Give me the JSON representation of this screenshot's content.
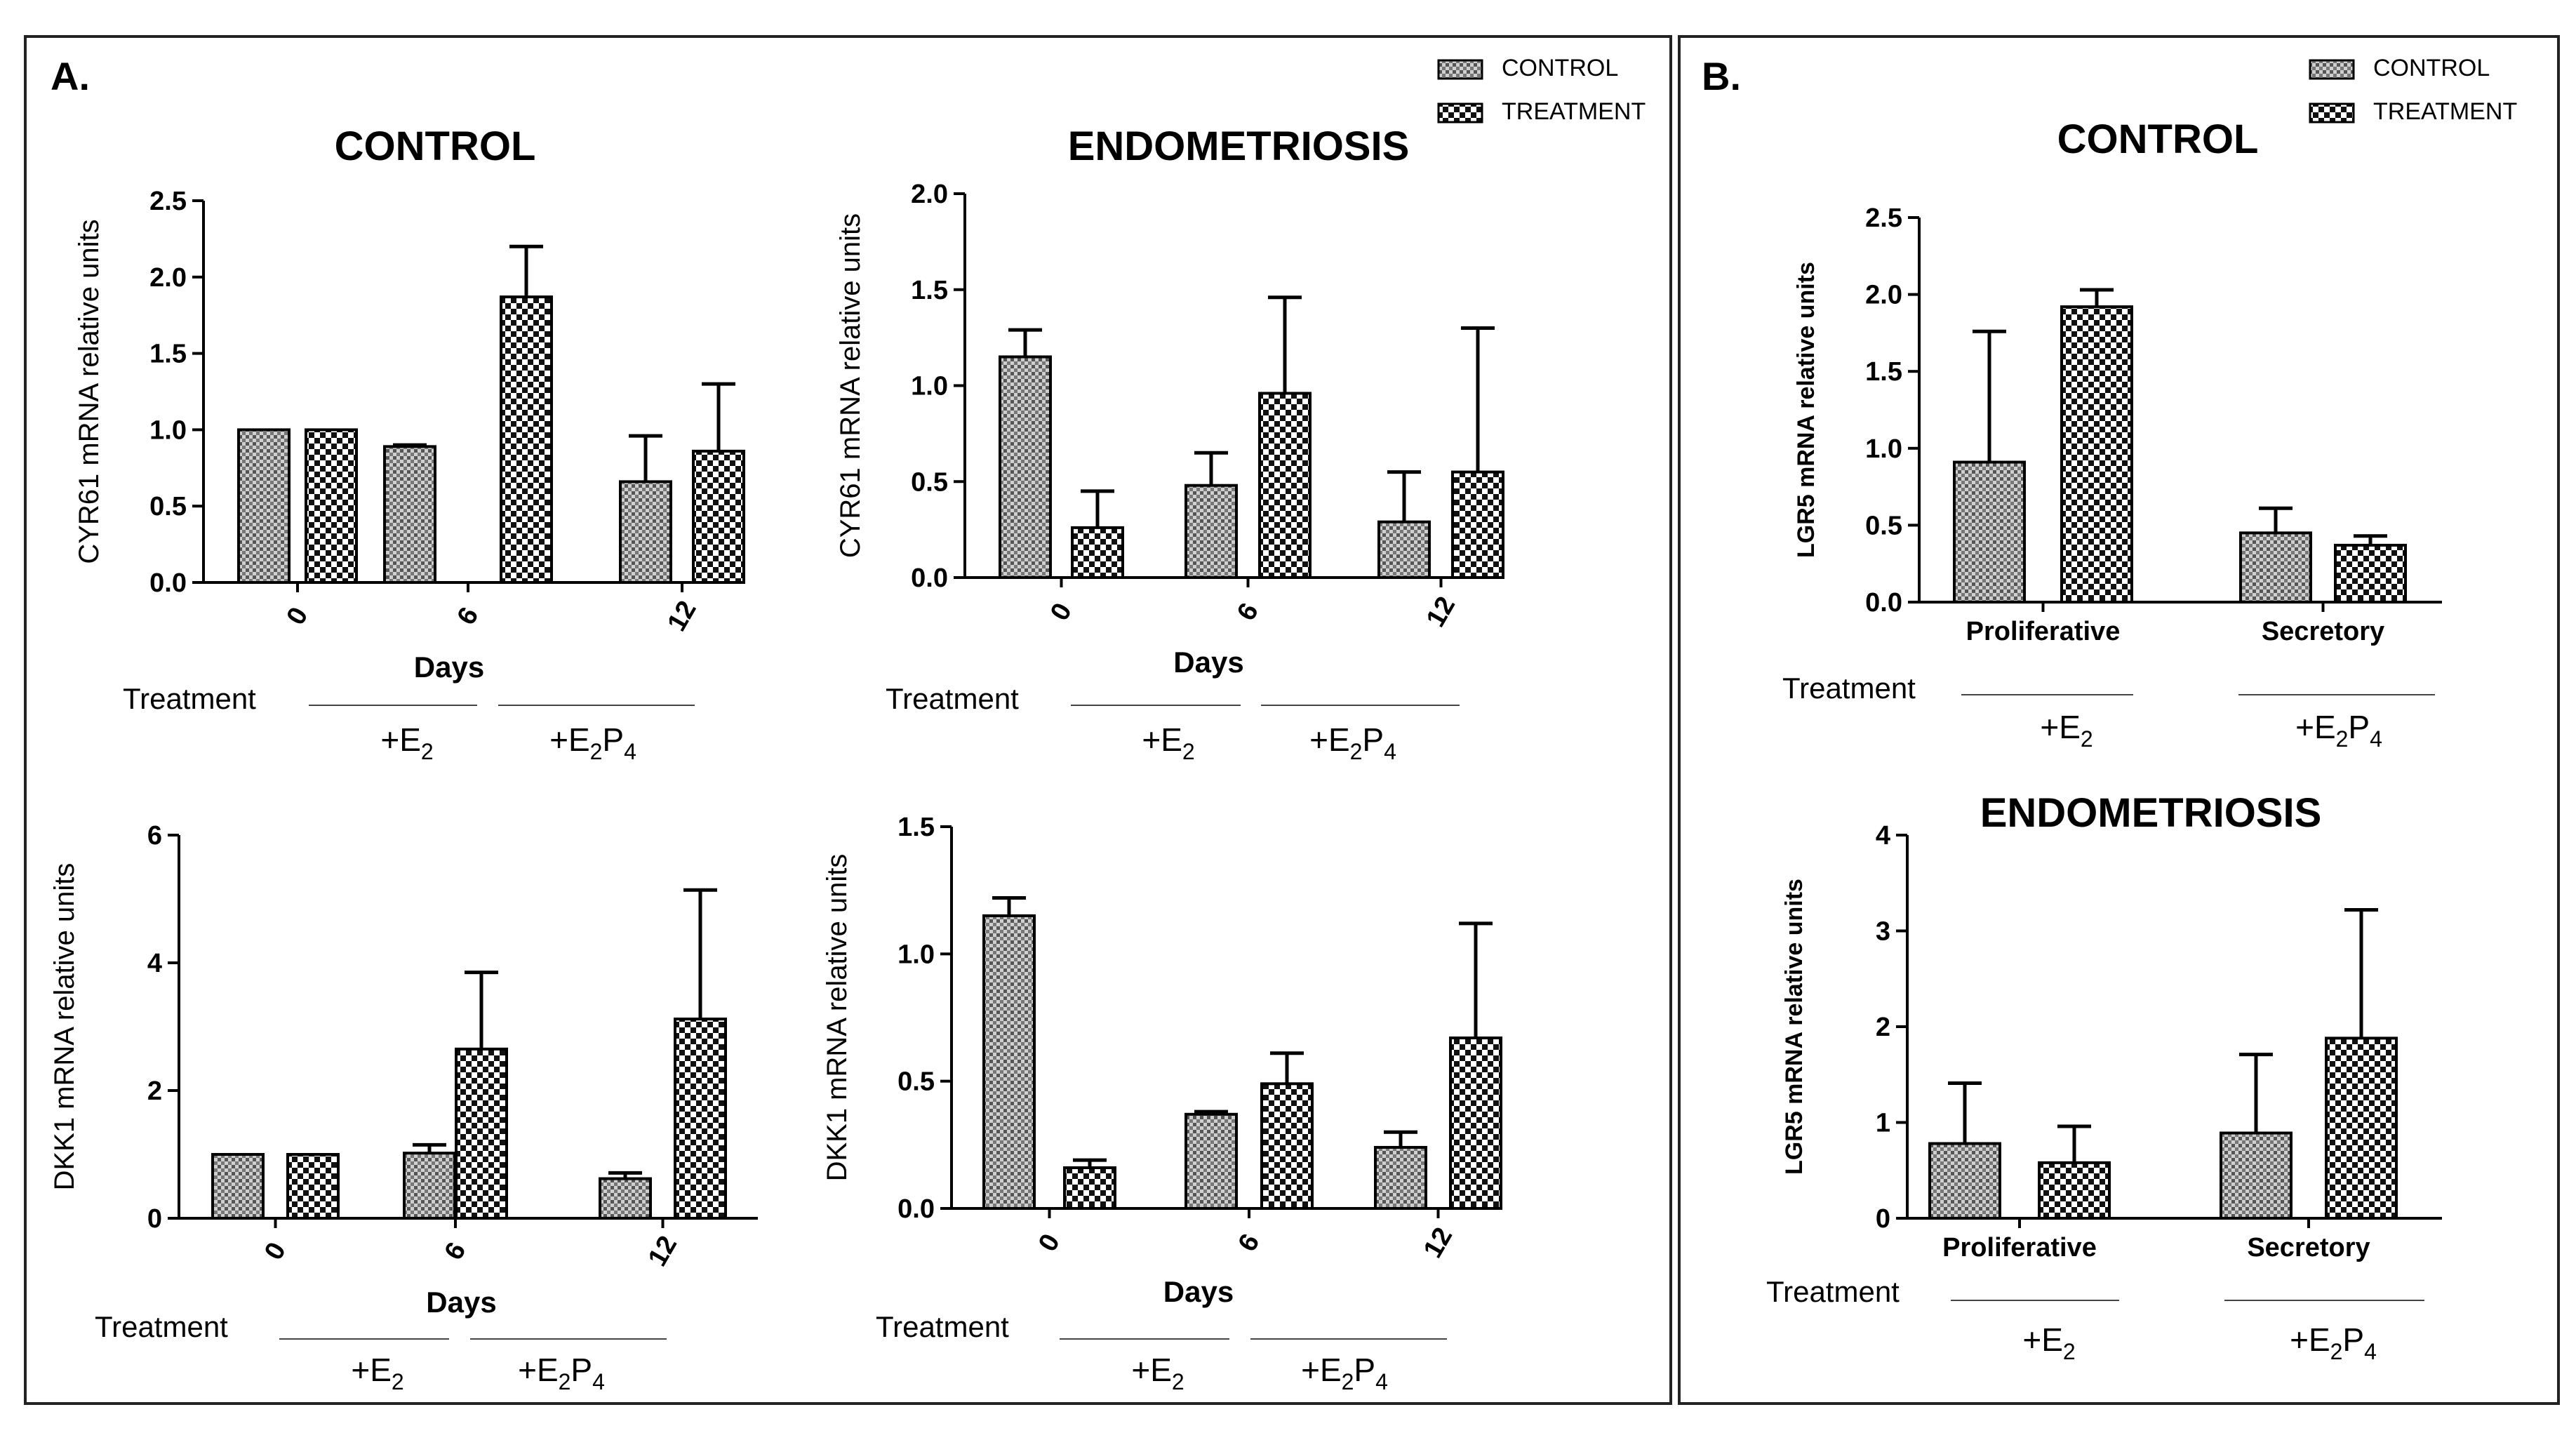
{
  "panels": [
    {
      "label": "A.",
      "legend": [
        "CONTROL",
        "TREATMENT"
      ]
    },
    {
      "label": "B.",
      "legend": [
        "CONTROL",
        "TREATMENT"
      ]
    }
  ],
  "treatment_text": "Treatment",
  "chart_data": [
    {
      "type": "bar",
      "panel": "A",
      "title": "CONTROL",
      "ylabel": "CYR61 mRNA relative units",
      "xlabel": "Days",
      "categories": [
        "0",
        "6",
        "12"
      ],
      "ylim": [
        0,
        2.5
      ],
      "yticks": [
        "0.0",
        "0.5",
        "1.0",
        "1.5",
        "2.0",
        "2.5"
      ],
      "series": [
        {
          "name": "CONTROL",
          "values": [
            1.0,
            0.89,
            0.66
          ],
          "errors": [
            0.0,
            0.01,
            0.3
          ]
        },
        {
          "name": "TREATMENT",
          "values": [
            1.0,
            1.87,
            0.86
          ],
          "errors": [
            0.0,
            0.33,
            0.44
          ]
        }
      ],
      "treatment_groups": [
        "+E",
        "+E",
        "P"
      ]
    },
    {
      "type": "bar",
      "panel": "A",
      "title": "ENDOMETRIOSIS",
      "ylabel": "CYR61 mRNA relative units",
      "xlabel": "Days",
      "categories": [
        "0",
        "6",
        "12"
      ],
      "ylim": [
        0,
        2.0
      ],
      "yticks": [
        "0.0",
        "0.5",
        "1.0",
        "1.5",
        "2.0"
      ],
      "series": [
        {
          "name": "CONTROL",
          "values": [
            1.15,
            0.48,
            0.29
          ],
          "errors": [
            0.14,
            0.17,
            0.26
          ]
        },
        {
          "name": "TREATMENT",
          "values": [
            0.26,
            0.96,
            0.55
          ],
          "errors": [
            0.19,
            0.5,
            0.75
          ]
        }
      ]
    },
    {
      "type": "bar",
      "panel": "A",
      "title": "",
      "ylabel": "DKK1 mRNA relative units",
      "xlabel": "Days",
      "categories": [
        "0",
        "6",
        "12"
      ],
      "ylim": [
        0,
        6
      ],
      "yticks": [
        "0",
        "2",
        "4",
        "6"
      ],
      "series": [
        {
          "name": "CONTROL",
          "values": [
            1.0,
            1.02,
            0.62
          ],
          "errors": [
            0.0,
            0.13,
            0.09
          ]
        },
        {
          "name": "TREATMENT",
          "values": [
            1.0,
            2.65,
            3.12
          ],
          "errors": [
            0.0,
            1.2,
            2.02
          ]
        }
      ]
    },
    {
      "type": "bar",
      "panel": "A",
      "title": "",
      "ylabel": "DKK1 mRNA relative units",
      "xlabel": "Days",
      "categories": [
        "0",
        "6",
        "12"
      ],
      "ylim": [
        0,
        1.5
      ],
      "yticks": [
        "0.0",
        "0.5",
        "1.0",
        "1.5"
      ],
      "series": [
        {
          "name": "CONTROL",
          "values": [
            1.15,
            0.37,
            0.24
          ],
          "errors": [
            0.07,
            0.01,
            0.06
          ]
        },
        {
          "name": "TREATMENT",
          "values": [
            0.16,
            0.49,
            0.67
          ],
          "errors": [
            0.03,
            0.12,
            0.45
          ]
        }
      ]
    },
    {
      "type": "bar",
      "panel": "B",
      "title": "CONTROL",
      "ylabel": "LGR5 mRNA relative units",
      "xlabel": "",
      "categories": [
        "Proliferative",
        "Secretory"
      ],
      "ylim": [
        0,
        2.5
      ],
      "yticks": [
        "0.0",
        "0.5",
        "1.0",
        "1.5",
        "2.0",
        "2.5"
      ],
      "series": [
        {
          "name": "CONTROL",
          "values": [
            0.91,
            0.45
          ],
          "errors": [
            0.85,
            0.16
          ]
        },
        {
          "name": "TREATMENT",
          "values": [
            1.92,
            0.37
          ],
          "errors": [
            0.11,
            0.06
          ]
        }
      ]
    },
    {
      "type": "bar",
      "panel": "B",
      "title": "ENDOMETRIOSIS",
      "ylabel": "LGR5 mRNA relative units",
      "xlabel": "",
      "categories": [
        "Proliferative",
        "Secretory"
      ],
      "ylim": [
        0,
        4
      ],
      "yticks": [
        "0",
        "1",
        "2",
        "3",
        "4"
      ],
      "series": [
        {
          "name": "CONTROL",
          "values": [
            0.78,
            0.89
          ],
          "errors": [
            0.63,
            0.82
          ]
        },
        {
          "name": "TREATMENT",
          "values": [
            0.58,
            1.88
          ],
          "errors": [
            0.38,
            1.34
          ]
        }
      ]
    }
  ],
  "treatment_labels": [
    {
      "base": "+E",
      "sub1": "2",
      "mid": "",
      "sub2": ""
    },
    {
      "base": "+E",
      "sub1": "2",
      "mid": "P",
      "sub2": "4"
    }
  ]
}
